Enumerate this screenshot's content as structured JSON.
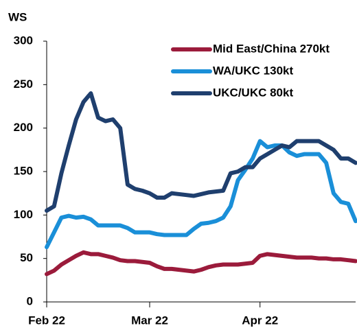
{
  "chart_data": {
    "type": "line",
    "y_label": "WS",
    "categories": [
      "Feb 22",
      null,
      null,
      null,
      null,
      null,
      null,
      null,
      null,
      null,
      null,
      null,
      null,
      null,
      "Mar 22",
      null,
      null,
      null,
      null,
      null,
      null,
      null,
      null,
      null,
      null,
      null,
      null,
      null,
      null,
      "Apr 22",
      null,
      null,
      null,
      null,
      null,
      null,
      null,
      null,
      null,
      null,
      null,
      null,
      null
    ],
    "series": [
      {
        "name": "Mid East/China 270kt",
        "color": "#9b1b3b",
        "values": [
          32,
          36,
          43,
          48,
          53,
          57,
          55,
          55,
          53,
          51,
          48,
          47,
          47,
          46,
          45,
          41,
          38,
          38,
          37,
          36,
          35,
          37,
          40,
          42,
          43,
          43,
          43,
          44,
          45,
          53,
          55,
          54,
          53,
          52,
          51,
          51,
          51,
          50,
          50,
          49,
          49,
          48,
          47
        ]
      },
      {
        "name": "WA/UKC 130kt",
        "color": "#1a8fd8",
        "values": [
          63,
          80,
          97,
          99,
          97,
          98,
          95,
          88,
          88,
          88,
          88,
          85,
          80,
          80,
          80,
          78,
          77,
          77,
          77,
          77,
          84,
          90,
          91,
          93,
          97,
          110,
          140,
          152,
          165,
          185,
          178,
          180,
          180,
          172,
          168,
          170,
          170,
          170,
          160,
          125,
          115,
          113,
          93
        ]
      },
      {
        "name": "UKC/UKC 80kt",
        "color": "#1f3f6e",
        "values": [
          105,
          110,
          148,
          180,
          210,
          230,
          240,
          212,
          208,
          210,
          200,
          135,
          130,
          128,
          125,
          120,
          120,
          125,
          124,
          123,
          122,
          124,
          126,
          127,
          128,
          148,
          150,
          155,
          155,
          165,
          170,
          175,
          180,
          178,
          185,
          185,
          185,
          185,
          180,
          175,
          165,
          165,
          160
        ]
      }
    ],
    "ylim": [
      0,
      300
    ],
    "yticks": [
      0,
      50,
      100,
      150,
      200,
      250,
      300
    ],
    "legend": "top-right",
    "grid": false
  }
}
